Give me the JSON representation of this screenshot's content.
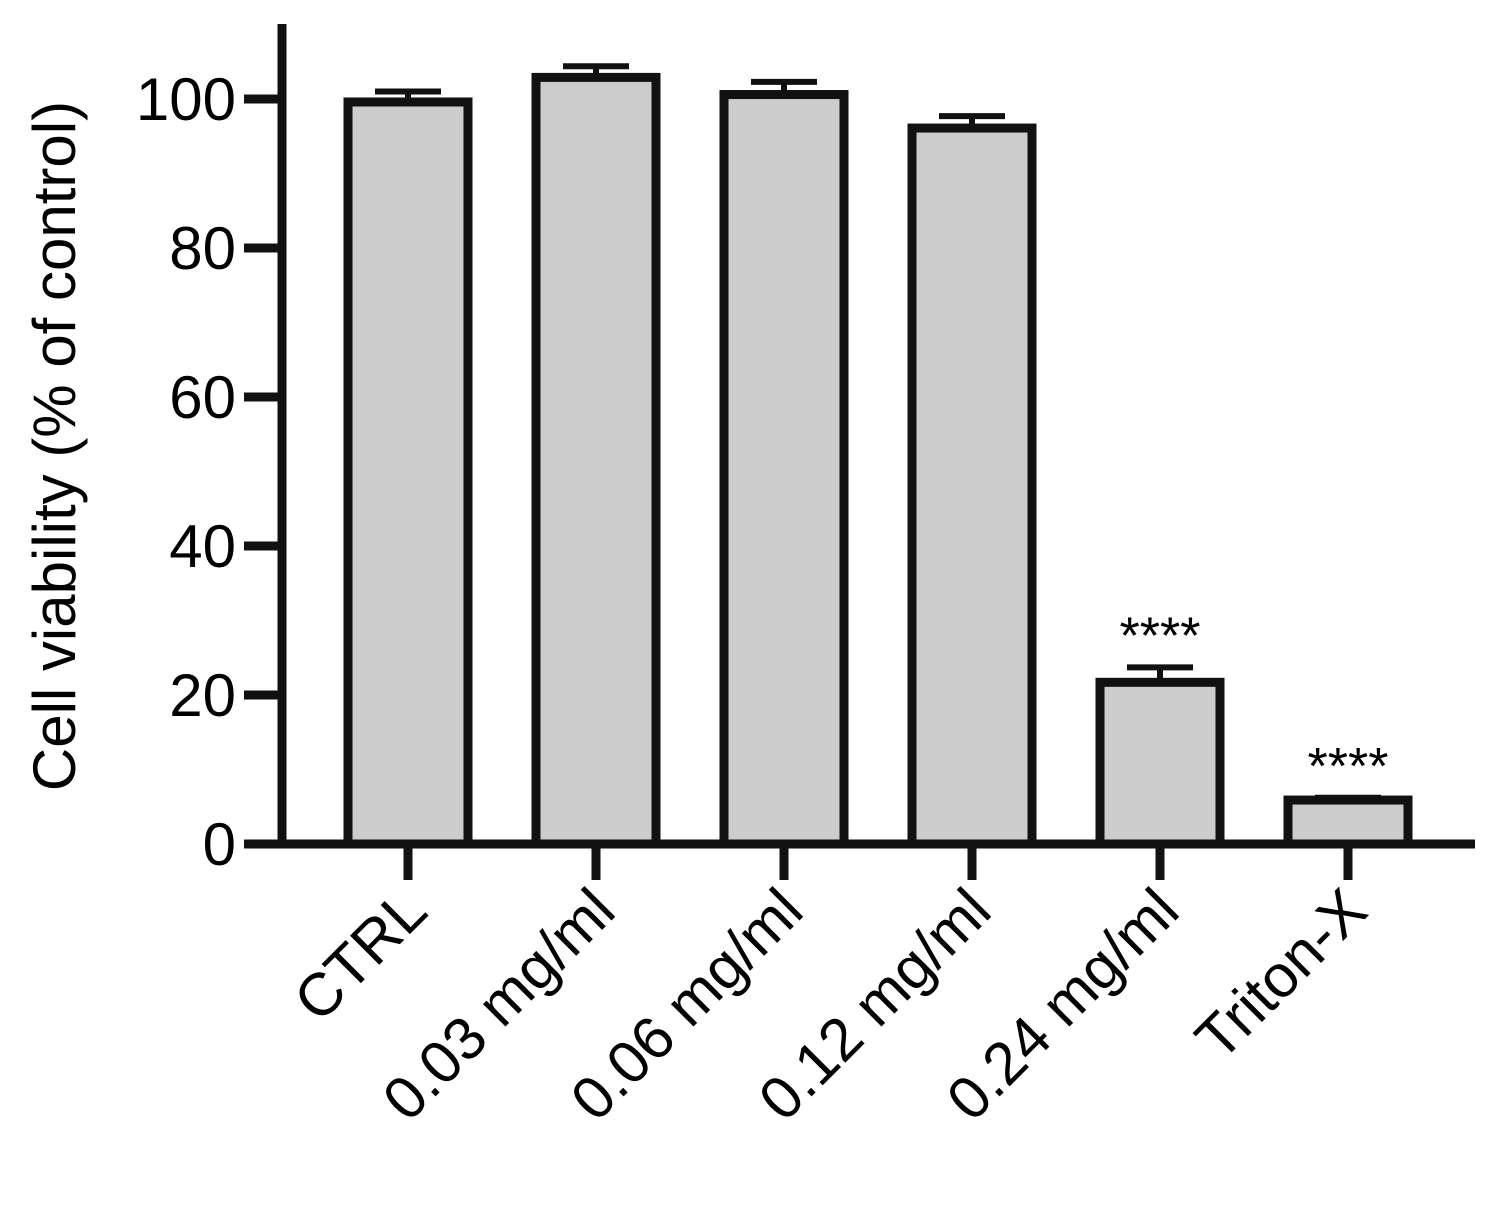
{
  "chart_data": {
    "type": "bar",
    "ylabel": "Cell viability (% of control)",
    "xlabel": "",
    "ylim": [
      0,
      110
    ],
    "yticks": [
      0,
      20,
      40,
      60,
      80,
      100
    ],
    "ytick_labels": [
      "0",
      "20",
      "40",
      "60",
      "80",
      "100"
    ],
    "categories": [
      "CTRL",
      "0.03 mg/ml",
      "0.06 mg/ml",
      "0.12 mg/ml",
      "0.24 mg/ml",
      "Triton-X"
    ],
    "values": [
      99.6,
      102.9,
      100.6,
      96.1,
      21.7,
      5.9
    ],
    "errors": [
      1.4,
      1.5,
      1.7,
      1.6,
      2.0,
      0.3
    ],
    "annotations": [
      "",
      "",
      "",
      "",
      "****",
      "****"
    ],
    "bar_fill": "#cccccc",
    "bar_stroke": "#111111",
    "grid": false,
    "legend": "none"
  }
}
